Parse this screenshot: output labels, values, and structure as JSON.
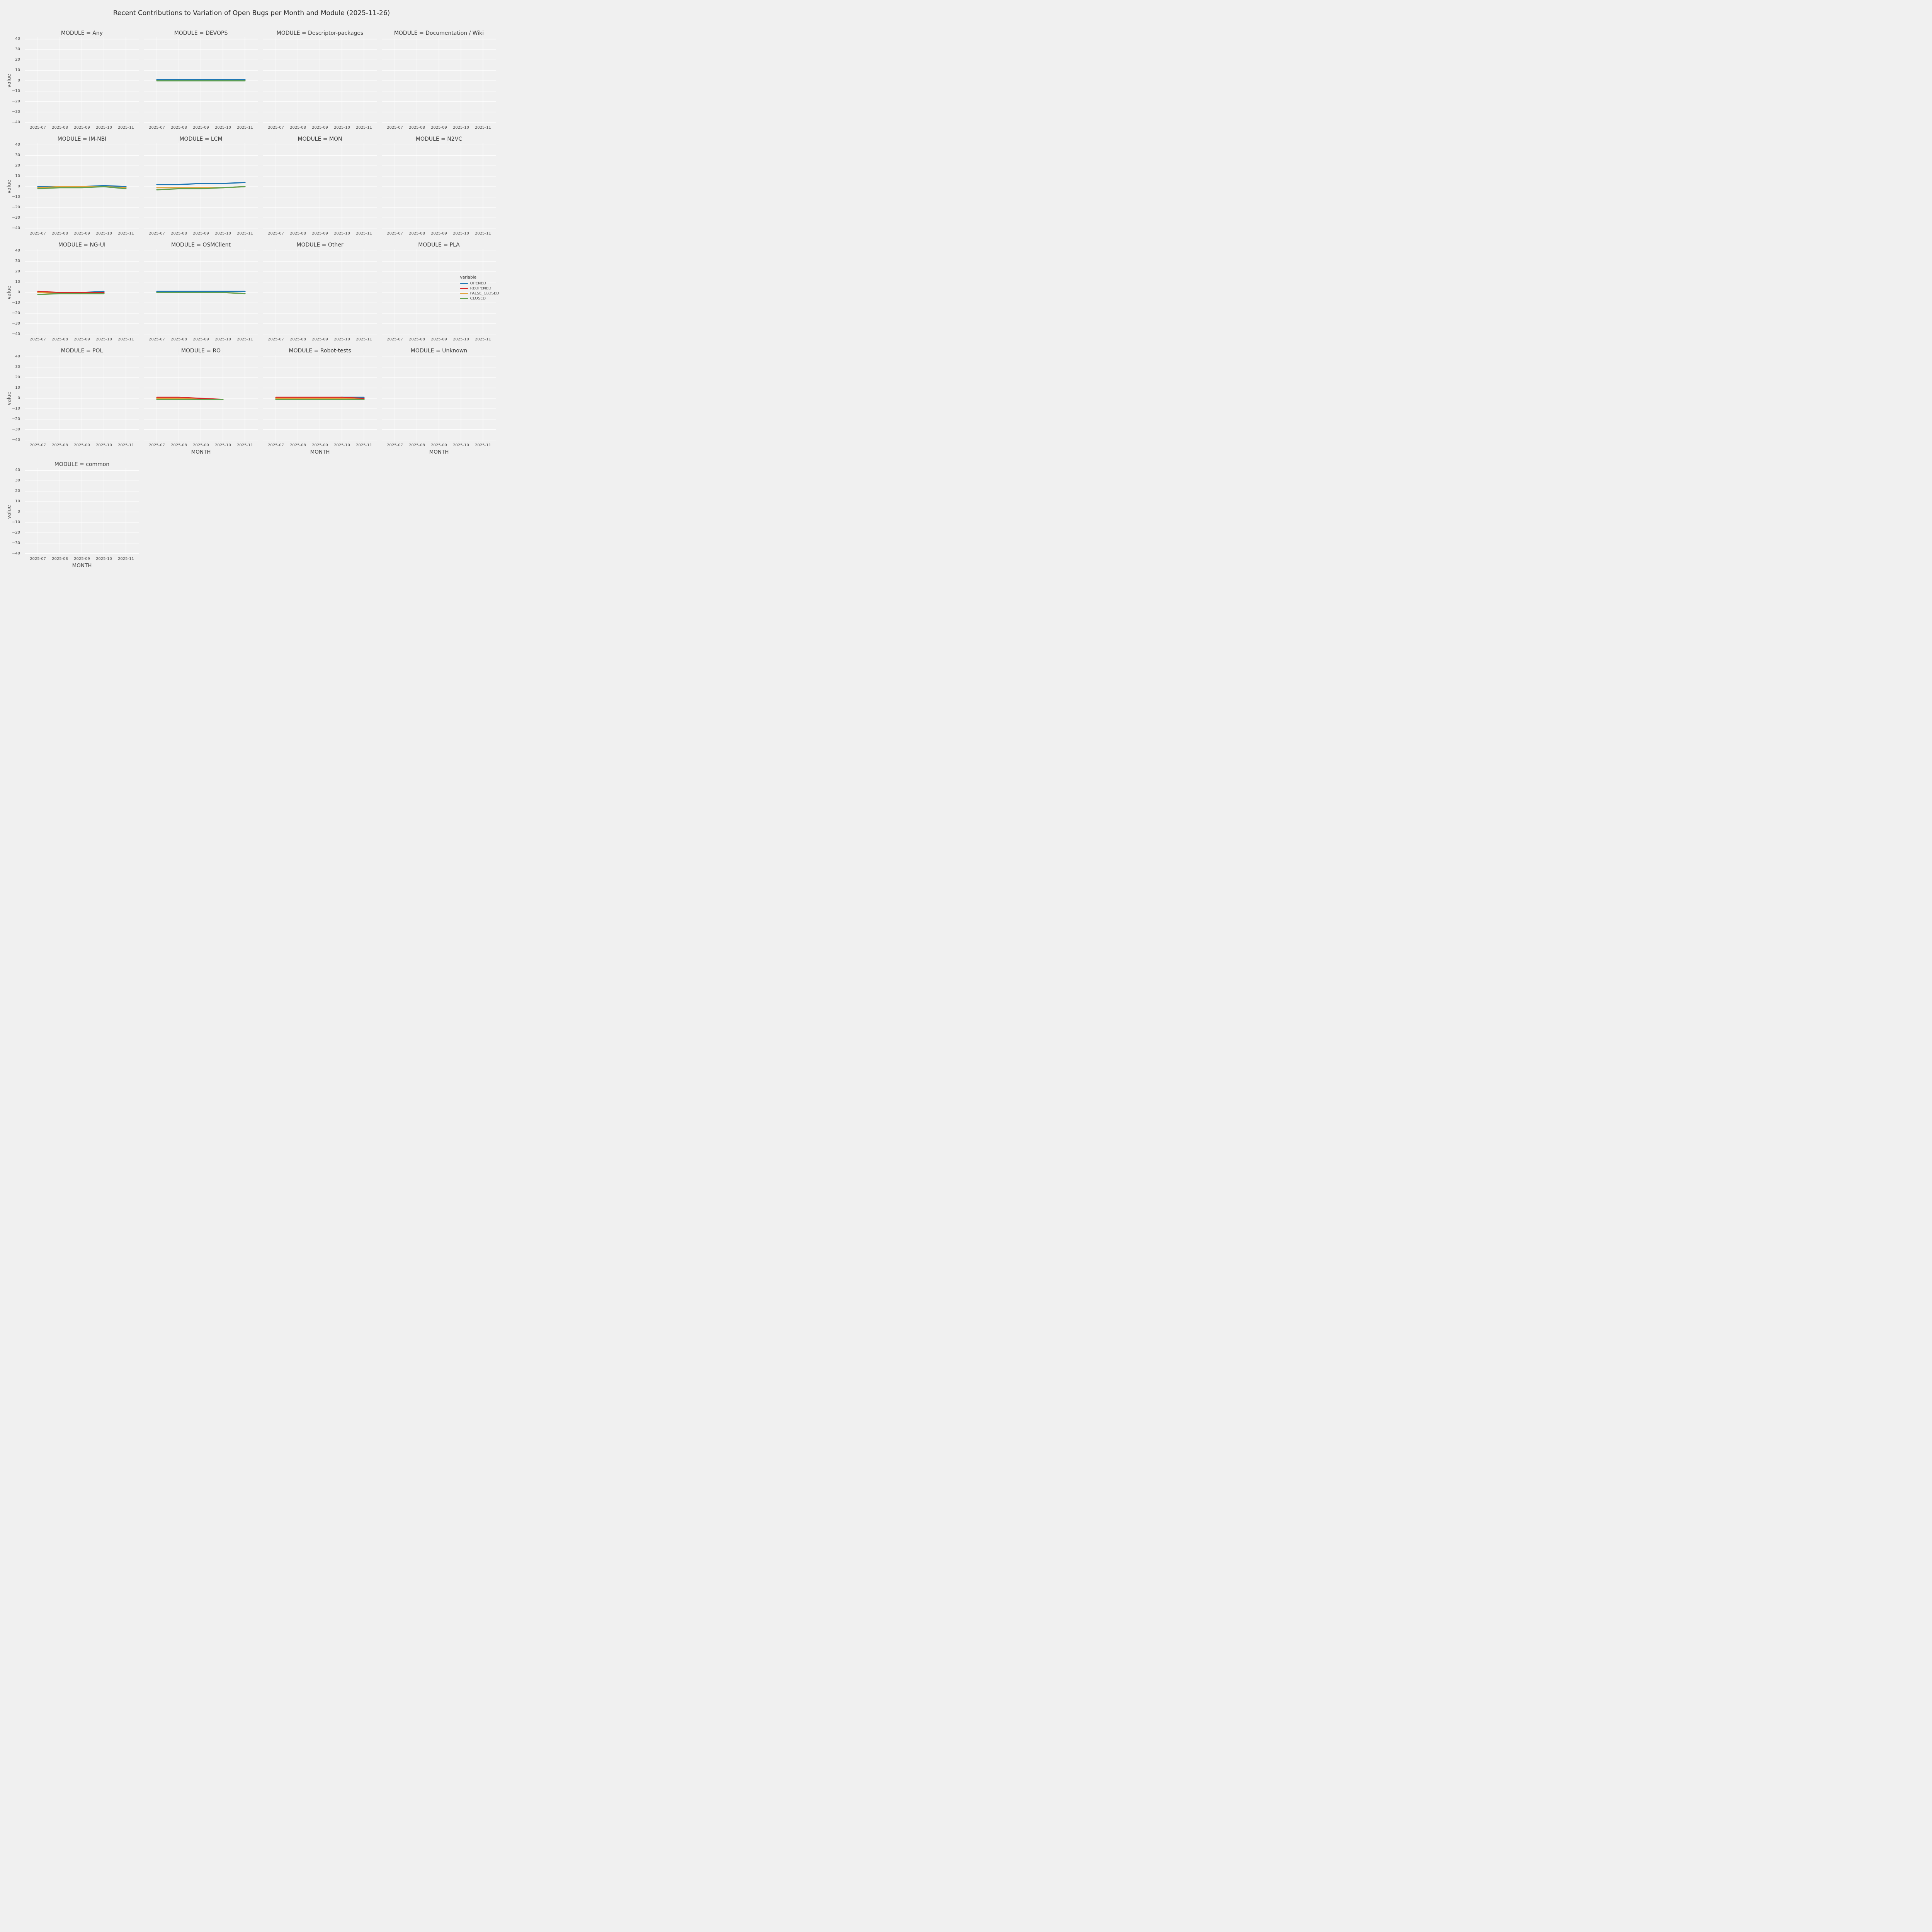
{
  "chart_data": {
    "type": "line",
    "title": "Recent Contributions to Variation of Open Bugs per Month and Module (2025-11-26)",
    "facet_by": "MODULE",
    "x": [
      "2025-07",
      "2025-08",
      "2025-09",
      "2025-10",
      "2025-11"
    ],
    "xlabel": "MONTH",
    "ylabel": "value",
    "ylim": [
      -40,
      40
    ],
    "yticks": [
      40,
      30,
      20,
      10,
      0,
      -10,
      -20,
      -30,
      -40
    ],
    "ytick_labels": [
      "40",
      "30",
      "20",
      "10",
      "0",
      "−10",
      "−20",
      "−30",
      "−40"
    ],
    "grid": true,
    "legend": {
      "title": "variable",
      "position": "right",
      "entries": [
        {
          "name": "OPENED",
          "color": "#1f77b4"
        },
        {
          "name": "REOPENED",
          "color": "#d62728"
        },
        {
          "name": "FALSE_CLOSED",
          "color": "#e2a33d"
        },
        {
          "name": "CLOSED",
          "color": "#61a04f"
        }
      ]
    },
    "facets": [
      {
        "module": "Any",
        "title": "MODULE = Any",
        "series": {}
      },
      {
        "module": "DEVOPS",
        "title": "MODULE = DEVOPS",
        "series": {
          "OPENED": [
            1,
            1,
            1,
            1,
            1
          ],
          "FALSE_CLOSED": [
            0,
            0,
            0,
            0,
            0
          ],
          "CLOSED": [
            0,
            0,
            0,
            0,
            0
          ]
        }
      },
      {
        "module": "Descriptor-packages",
        "title": "MODULE = Descriptor-packages",
        "series": {}
      },
      {
        "module": "Documentation / Wiki",
        "title": "MODULE = Documentation / Wiki",
        "series": {}
      },
      {
        "module": "IM-NBI",
        "title": "MODULE = IM-NBI",
        "series": {
          "OPENED": [
            0,
            0,
            0,
            1,
            0
          ],
          "FALSE_CLOSED": [
            -1,
            0,
            0,
            0,
            -1
          ],
          "CLOSED": [
            -2,
            -1,
            -1,
            0,
            -2
          ]
        }
      },
      {
        "module": "LCM",
        "title": "MODULE = LCM",
        "series": {
          "OPENED": [
            2,
            2,
            3,
            3,
            4
          ],
          "FALSE_CLOSED": [
            -1,
            -1,
            -1,
            -1,
            0
          ],
          "CLOSED": [
            -3,
            -2,
            -2,
            -1,
            0
          ]
        }
      },
      {
        "module": "MON",
        "title": "MODULE = MON",
        "series": {}
      },
      {
        "module": "N2VC",
        "title": "MODULE = N2VC",
        "series": {}
      },
      {
        "module": "NG-UI",
        "title": "MODULE = NG-UI",
        "series": {
          "OPENED": [
            0,
            0,
            0,
            1,
            null
          ],
          "REOPENED": [
            1,
            0,
            0,
            0,
            null
          ],
          "FALSE_CLOSED": [
            0,
            -1,
            -1,
            -1,
            null
          ],
          "CLOSED": [
            -2,
            -1,
            -1,
            -1,
            null
          ]
        }
      },
      {
        "module": "OSMClient",
        "title": "MODULE = OSMClient",
        "series": {
          "OPENED": [
            1,
            1,
            1,
            1,
            1
          ],
          "FALSE_CLOSED": [
            0,
            0,
            0,
            0,
            -1
          ],
          "CLOSED": [
            0,
            0,
            0,
            0,
            -1
          ]
        }
      },
      {
        "module": "Other",
        "title": "MODULE = Other",
        "series": {}
      },
      {
        "module": "PLA",
        "title": "MODULE = PLA",
        "series": {}
      },
      {
        "module": "POL",
        "title": "MODULE = POL",
        "series": {}
      },
      {
        "module": "RO",
        "title": "MODULE = RO",
        "series": {
          "REOPENED": [
            1,
            1,
            0,
            -1,
            null
          ],
          "FALSE_CLOSED": [
            0,
            0,
            -1,
            -1,
            null
          ],
          "CLOSED": [
            -1,
            -1,
            -1,
            -1,
            null
          ]
        }
      },
      {
        "module": "Robot-tests",
        "title": "MODULE = Robot-tests",
        "series": {
          "OPENED": [
            0,
            0,
            0,
            1,
            1
          ],
          "REOPENED": [
            1,
            1,
            1,
            1,
            0
          ],
          "FALSE_CLOSED": [
            0,
            0,
            0,
            0,
            -1
          ],
          "CLOSED": [
            -1,
            -1,
            -1,
            -1,
            -1
          ]
        }
      },
      {
        "module": "Unknown",
        "title": "MODULE = Unknown",
        "series": {}
      },
      {
        "module": "common",
        "title": "MODULE = common",
        "series": {}
      }
    ]
  }
}
